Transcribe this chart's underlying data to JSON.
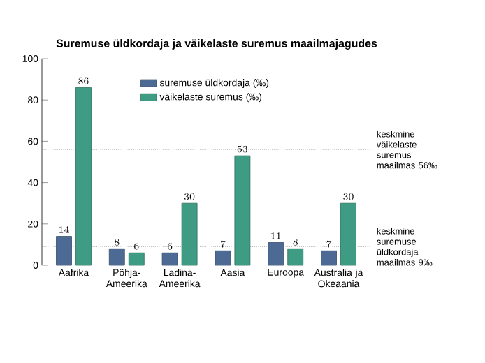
{
  "chart_data": {
    "type": "bar",
    "title": "Suremuse üldkordaja ja väikelaste suremus maailmajagudes",
    "categories": [
      "Aafrika",
      "Põhja-Ameerika",
      "Ladina-Ameerika",
      "Aasia",
      "Euroopa",
      "Australia ja Okeaania"
    ],
    "series": [
      {
        "name": "suremuse üldkordaja (‰)",
        "color": "#4d6a94",
        "values": [
          14,
          8,
          6,
          7,
          11,
          7
        ]
      },
      {
        "name": "väikelaste suremus (‰)",
        "color": "#3f9c84",
        "values": [
          86,
          6,
          30,
          53,
          8,
          30
        ]
      }
    ],
    "ylim": [
      0,
      100
    ],
    "yticks": [
      0,
      20,
      40,
      60,
      80,
      100
    ],
    "ref_lines": [
      {
        "axis": "y",
        "value": 56,
        "label": "keskmine väikelaste suremus maailmas 56‰",
        "line_style": "dotted"
      },
      {
        "axis": "y",
        "value": 9,
        "label": "keskmine suremuse üldkordaja maailmas 9‰",
        "line_style": "dotted"
      }
    ],
    "data_labels": true,
    "legend": "top",
    "grid": false
  }
}
